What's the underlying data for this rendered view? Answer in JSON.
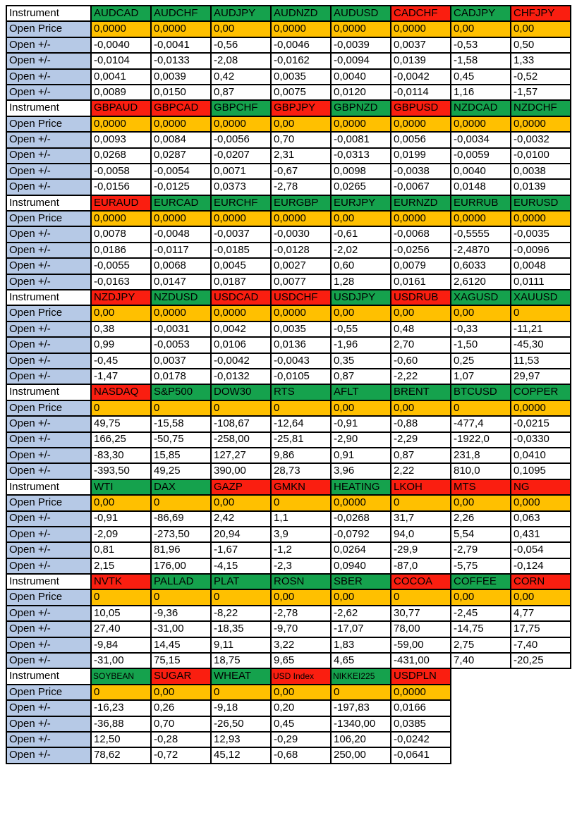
{
  "labels": {
    "instrument": "Instrument",
    "open_price": "Open Price",
    "open_change": "Open +/-"
  },
  "colors": {
    "green": "#15A24D",
    "red": "#FA1E10",
    "orange": "#FFC000",
    "label_blue": "#B6C9E6",
    "border": "#000000",
    "text": "#000000"
  },
  "blocks": [
    {
      "instruments": [
        {
          "symbol": "AUDCAD",
          "color": "green"
        },
        {
          "symbol": "AUDCHF",
          "color": "green"
        },
        {
          "symbol": "AUDJPY",
          "color": "green"
        },
        {
          "symbol": "AUDNZD",
          "color": "green"
        },
        {
          "symbol": "AUDUSD",
          "color": "green"
        },
        {
          "symbol": "CADCHF",
          "color": "red"
        },
        {
          "symbol": "CADJPY",
          "color": "green"
        },
        {
          "symbol": "CHFJPY",
          "color": "red"
        }
      ],
      "open_price": [
        "0,0000",
        "0,0000",
        "0,00",
        "0,0000",
        "0,0000",
        "0,0000",
        "0,00",
        "0,00"
      ],
      "open_changes": [
        [
          "-0,0040",
          "-0,0041",
          "-0,56",
          "-0,0046",
          "-0,0039",
          "0,0037",
          "-0,53",
          "0,50"
        ],
        [
          "-0,0104",
          "-0,0133",
          "-2,08",
          "-0,0162",
          "-0,0094",
          "0,0139",
          "-1,58",
          "1,33"
        ],
        [
          "0,0041",
          "0,0039",
          "0,42",
          "0,0035",
          "0,0040",
          "-0,0042",
          "0,45",
          "-0,52"
        ],
        [
          "0,0089",
          "0,0150",
          "0,87",
          "0,0075",
          "0,0120",
          "-0,0114",
          "1,16",
          "-1,57"
        ]
      ]
    },
    {
      "instruments": [
        {
          "symbol": "GBPAUD",
          "color": "red"
        },
        {
          "symbol": "GBPCAD",
          "color": "red"
        },
        {
          "symbol": "GBPCHF",
          "color": "green"
        },
        {
          "symbol": "GBPJPY",
          "color": "red"
        },
        {
          "symbol": "GBPNZD",
          "color": "green"
        },
        {
          "symbol": "GBPUSD",
          "color": "red"
        },
        {
          "symbol": "NZDCAD",
          "color": "green"
        },
        {
          "symbol": "NZDCHF",
          "color": "green"
        }
      ],
      "open_price": [
        "0,0000",
        "0,0000",
        "0,0000",
        "0,00",
        "0,0000",
        "0,0000",
        "0,0000",
        "0,0000"
      ],
      "open_changes": [
        [
          "0,0093",
          "0,0084",
          "-0,0056",
          "0,70",
          "-0,0081",
          "0,0056",
          "-0,0034",
          "-0,0032"
        ],
        [
          "0,0268",
          "0,0287",
          "-0,0207",
          "2,31",
          "-0,0313",
          "0,0199",
          "-0,0059",
          "-0,0100"
        ],
        [
          "-0,0058",
          "-0,0054",
          "0,0071",
          "-0,67",
          "0,0098",
          "-0,0038",
          "0,0040",
          "0,0038"
        ],
        [
          "-0,0156",
          "-0,0125",
          "0,0373",
          "-2,78",
          "0,0265",
          "-0,0067",
          "0,0148",
          "0,0139"
        ]
      ]
    },
    {
      "instruments": [
        {
          "symbol": "EURAUD",
          "color": "red"
        },
        {
          "symbol": "EURCAD",
          "color": "green"
        },
        {
          "symbol": "EURCHF",
          "color": "green"
        },
        {
          "symbol": "EURGBP",
          "color": "green"
        },
        {
          "symbol": "EURJPY",
          "color": "green"
        },
        {
          "symbol": "EURNZD",
          "color": "green"
        },
        {
          "symbol": "EURRUB",
          "color": "green"
        },
        {
          "symbol": "EURUSD",
          "color": "green"
        }
      ],
      "open_price": [
        "0,0000",
        "0,0000",
        "0,0000",
        "0,0000",
        "0,00",
        "0,0000",
        "0,0000",
        "0,0000"
      ],
      "open_changes": [
        [
          "0,0078",
          "-0,0048",
          "-0,0037",
          "-0,0030",
          "-0,61",
          "-0,0068",
          "-0,5555",
          "-0,0035"
        ],
        [
          "0,0186",
          "-0,0117",
          "-0,0185",
          "-0,0128",
          "-2,02",
          "-0,0256",
          "-2,4870",
          "-0,0096"
        ],
        [
          "-0,0055",
          "0,0068",
          "0,0045",
          "0,0027",
          "0,60",
          "0,0079",
          "0,6033",
          "0,0048"
        ],
        [
          "-0,0163",
          "0,0147",
          "0,0187",
          "0,0077",
          "1,28",
          "0,0161",
          "2,6120",
          "0,0111"
        ]
      ]
    },
    {
      "instruments": [
        {
          "symbol": "NZDJPY",
          "color": "red"
        },
        {
          "symbol": "NZDUSD",
          "color": "green"
        },
        {
          "symbol": "USDCAD",
          "color": "red"
        },
        {
          "symbol": "USDCHF",
          "color": "red"
        },
        {
          "symbol": "USDJPY",
          "color": "green"
        },
        {
          "symbol": "USDRUB",
          "color": "red"
        },
        {
          "symbol": "XAGUSD",
          "color": "green"
        },
        {
          "symbol": "XAUUSD",
          "color": "green"
        }
      ],
      "open_price": [
        "0,00",
        "0,0000",
        "0,0000",
        "0,0000",
        "0,00",
        "0,00",
        "0,00",
        "0"
      ],
      "open_changes": [
        [
          "0,38",
          "-0,0031",
          "0,0042",
          "0,0035",
          "-0,55",
          "0,48",
          "-0,33",
          "-11,21"
        ],
        [
          "0,99",
          "-0,0053",
          "0,0106",
          "0,0136",
          "-1,96",
          "2,70",
          "-1,50",
          "-45,30"
        ],
        [
          "-0,45",
          "0,0037",
          "-0,0042",
          "-0,0043",
          "0,35",
          "-0,60",
          "0,25",
          "11,53"
        ],
        [
          "-1,47",
          "0,0178",
          "-0,0132",
          "-0,0105",
          "0,87",
          "-2,22",
          "1,07",
          "29,97"
        ]
      ]
    },
    {
      "instruments": [
        {
          "symbol": "NASDAQ",
          "color": "red"
        },
        {
          "symbol": "S&P500",
          "color": "green"
        },
        {
          "symbol": "DOW30",
          "color": "green"
        },
        {
          "symbol": "RTS",
          "color": "green"
        },
        {
          "symbol": "AFLT",
          "color": "green"
        },
        {
          "symbol": "BRENT",
          "color": "green"
        },
        {
          "symbol": "BTCUSD",
          "color": "green"
        },
        {
          "symbol": "COPPER",
          "color": "green"
        }
      ],
      "open_price": [
        "0",
        "0",
        "0",
        "0",
        "0,00",
        "0,00",
        "0",
        "0,0000"
      ],
      "open_changes": [
        [
          "49,75",
          "-15,58",
          "-108,67",
          "-12,64",
          "-0,91",
          "-0,88",
          "-477,4",
          "-0,0215"
        ],
        [
          "166,25",
          "-50,75",
          "-258,00",
          "-25,81",
          "-2,90",
          "-2,29",
          "-1922,0",
          "-0,0330"
        ],
        [
          "-83,30",
          "15,85",
          "127,27",
          "9,86",
          "0,91",
          "0,87",
          "231,8",
          "0,0410"
        ],
        [
          "-393,50",
          "49,25",
          "390,00",
          "28,73",
          "3,96",
          "2,22",
          "810,0",
          "0,1095"
        ]
      ]
    },
    {
      "instruments": [
        {
          "symbol": "WTI",
          "color": "green"
        },
        {
          "symbol": "DAX",
          "color": "green"
        },
        {
          "symbol": "GAZP",
          "color": "red"
        },
        {
          "symbol": "GMKN",
          "color": "red"
        },
        {
          "symbol": "HEATING",
          "color": "green"
        },
        {
          "symbol": "LKOH",
          "color": "red"
        },
        {
          "symbol": "MTS",
          "color": "red"
        },
        {
          "symbol": "NG",
          "color": "red"
        }
      ],
      "open_price": [
        "0,00",
        "0",
        "0,00",
        "0",
        "0,0000",
        "0",
        "0,00",
        "0,000"
      ],
      "open_changes": [
        [
          "-0,91",
          "-86,69",
          "2,42",
          "1,1",
          "-0,0268",
          "31,7",
          "2,26",
          "0,063"
        ],
        [
          "-2,09",
          "-273,50",
          "20,94",
          "3,9",
          "-0,0792",
          "94,0",
          "5,54",
          "0,431"
        ],
        [
          "0,81",
          "81,96",
          "-1,67",
          "-1,2",
          "0,0264",
          "-29,9",
          "-2,79",
          "-0,054"
        ],
        [
          "2,15",
          "176,00",
          "-4,15",
          "-2,3",
          "0,0940",
          "-87,0",
          "-5,75",
          "-0,124"
        ]
      ]
    },
    {
      "instruments": [
        {
          "symbol": "NVTK",
          "color": "red"
        },
        {
          "symbol": "PALLAD",
          "color": "green"
        },
        {
          "symbol": "PLAT",
          "color": "green"
        },
        {
          "symbol": "ROSN",
          "color": "green"
        },
        {
          "symbol": "SBER",
          "color": "green"
        },
        {
          "symbol": "COCOA",
          "color": "red"
        },
        {
          "symbol": "COFFEE",
          "color": "green"
        },
        {
          "symbol": "CORN",
          "color": "red"
        }
      ],
      "open_price": [
        "0",
        "0",
        "0",
        "0,00",
        "0,00",
        "0",
        "0,00",
        "0,00"
      ],
      "open_changes": [
        [
          "10,05",
          "-9,36",
          "-8,22",
          "-2,78",
          "-2,62",
          "30,77",
          "-2,45",
          "4,77"
        ],
        [
          "27,40",
          "-31,00",
          "-18,35",
          "-9,70",
          "-17,07",
          "78,00",
          "-14,75",
          "17,75"
        ],
        [
          "-9,84",
          "14,45",
          "9,11",
          "3,22",
          "1,83",
          "-59,00",
          "2,75",
          "-7,40"
        ],
        [
          "-31,00",
          "75,15",
          "18,75",
          "9,65",
          "4,65",
          "-431,00",
          "7,40",
          "-20,25"
        ]
      ]
    },
    {
      "instruments": [
        {
          "symbol": "SOYBEAN",
          "color": "green",
          "small": true
        },
        {
          "symbol": "SUGAR",
          "color": "red"
        },
        {
          "symbol": "WHEAT",
          "color": "green"
        },
        {
          "symbol": "USD Index",
          "color": "red",
          "small": true
        },
        {
          "symbol": "NIKKEI225",
          "color": "green",
          "small": true
        },
        {
          "symbol": "USDPLN",
          "color": "red"
        }
      ],
      "open_price": [
        "0",
        "0,00",
        "0",
        "0,00",
        "0",
        "0,0000"
      ],
      "open_changes": [
        [
          "-16,23",
          "0,26",
          "-9,18",
          "0,20",
          "-197,83",
          "0,0166"
        ],
        [
          "-36,88",
          "0,70",
          "-26,50",
          "0,45",
          "-1340,00",
          "0,0385"
        ],
        [
          "12,50",
          "-0,28",
          "12,93",
          "-0,29",
          "106,20",
          "-0,0242"
        ],
        [
          "78,62",
          "-0,72",
          "45,12",
          "-0,68",
          "250,00",
          "-0,0641"
        ]
      ]
    }
  ]
}
